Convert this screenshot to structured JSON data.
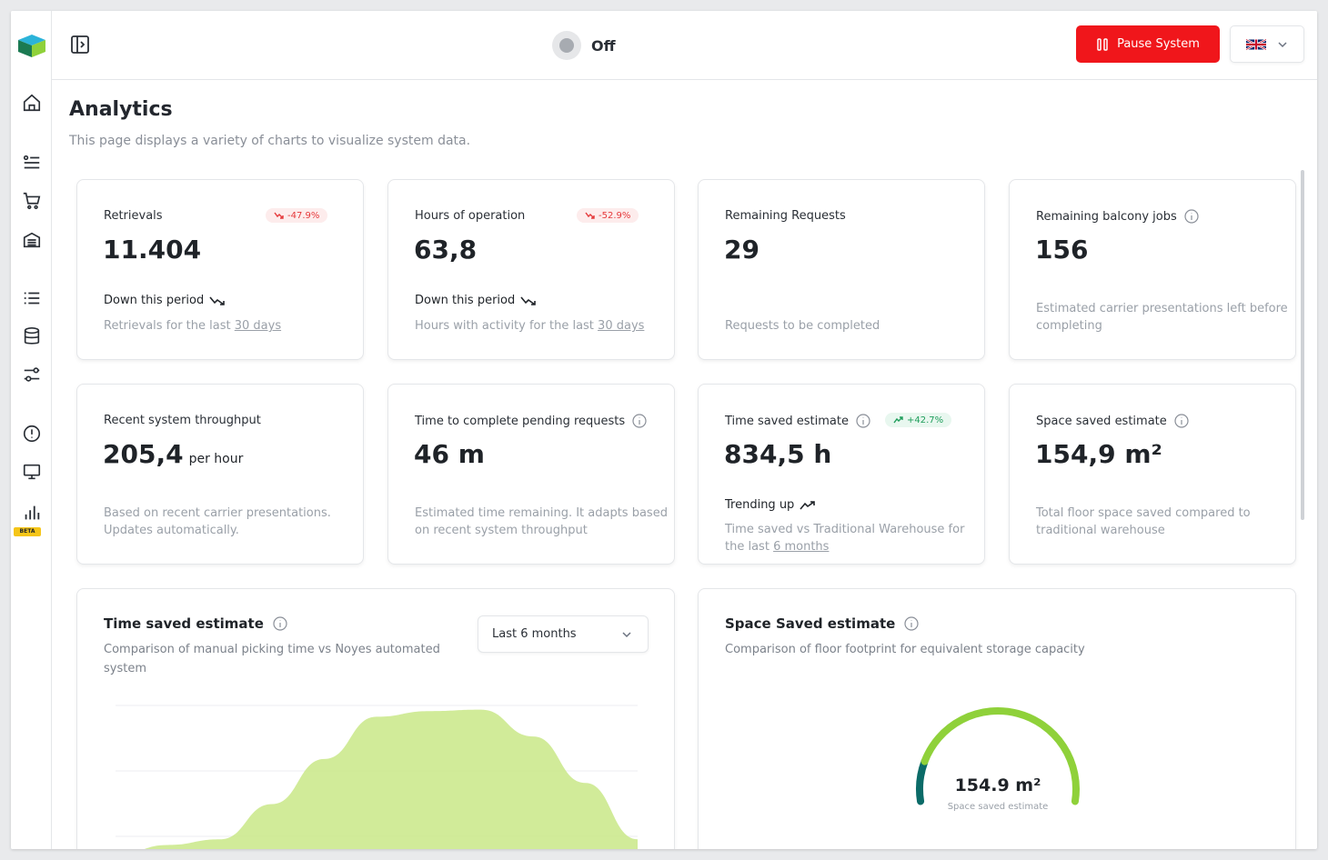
{
  "header": {
    "status_text": "Off",
    "pause_label": "Pause System",
    "language": "UK flag"
  },
  "page": {
    "title": "Analytics",
    "subtitle": "This page displays a variety of charts to visualize system data."
  },
  "cards": {
    "retrievals": {
      "label": "Retrievals",
      "badge": "-47.9%",
      "value": "11.404",
      "trend": "Down this period",
      "desc_prefix": "Retrievals for the last ",
      "desc_link": "30 days"
    },
    "hours": {
      "label": "Hours of operation",
      "badge": "-52.9%",
      "value": "63,8",
      "trend": "Down this period",
      "desc_prefix": "Hours with activity for the last ",
      "desc_link": "30 days"
    },
    "remaining_requests": {
      "label": "Remaining Requests",
      "value": "29",
      "desc": "Requests to be completed"
    },
    "balcony_jobs": {
      "label": "Remaining balcony jobs",
      "value": "156",
      "desc": "Estimated carrier presentations left before completing"
    },
    "throughput": {
      "label": "Recent system throughput",
      "value": "205,4",
      "unit": "per hour",
      "desc": "Based on recent carrier presentations. Updates automatically."
    },
    "pending_time": {
      "label": "Time to complete pending requests",
      "value": "46 m",
      "desc": "Estimated time remaining. It adapts based on recent system throughput"
    },
    "time_saved": {
      "label": "Time saved estimate",
      "badge": "+42.7%",
      "value": "834,5 h",
      "trend": "Trending up",
      "desc_prefix": "Time saved vs Traditional Warehouse for the last ",
      "desc_link": "6 months"
    },
    "space_saved": {
      "label": "Space saved estimate",
      "value": "154,9 m²",
      "desc": "Total floor space saved compared to traditional warehouse"
    }
  },
  "panels": {
    "time_saved": {
      "title": "Time saved estimate",
      "desc": "Comparison of manual picking time vs Noyes automated system",
      "range": "Last 6 months"
    },
    "space_saved": {
      "title": "Space Saved estimate",
      "desc": "Comparison of floor footprint for equivalent storage capacity",
      "gauge_value": "154.9 m²",
      "gauge_label": "Space saved estimate"
    }
  },
  "chart_data": [
    {
      "type": "area",
      "x": [
        0,
        1,
        2,
        3,
        4,
        5,
        6,
        7,
        8,
        9,
        10
      ],
      "values": [
        0,
        1,
        5,
        30,
        62,
        92,
        96,
        97,
        78,
        45,
        5
      ],
      "ylim": [
        0,
        100
      ],
      "grid": true,
      "color": "#c9e887"
    },
    {
      "type": "gauge",
      "value": 154.9,
      "unit": "m²",
      "fraction": 0.85,
      "colors": [
        "#0b6b68",
        "#8fd13a"
      ]
    }
  ],
  "colors": {
    "accent_red": "#f0161b",
    "down": "#e5393b",
    "up": "#1f9d5b",
    "chart_green": "#c9e887"
  },
  "icons": {
    "sidebar": [
      "home-icon",
      "task-list-icon",
      "cart-icon",
      "storage-icon",
      "list-icon",
      "database-icon",
      "sliders-icon",
      "alert-icon",
      "monitor-icon",
      "analytics-icon"
    ],
    "beta_badge": "BETA"
  }
}
